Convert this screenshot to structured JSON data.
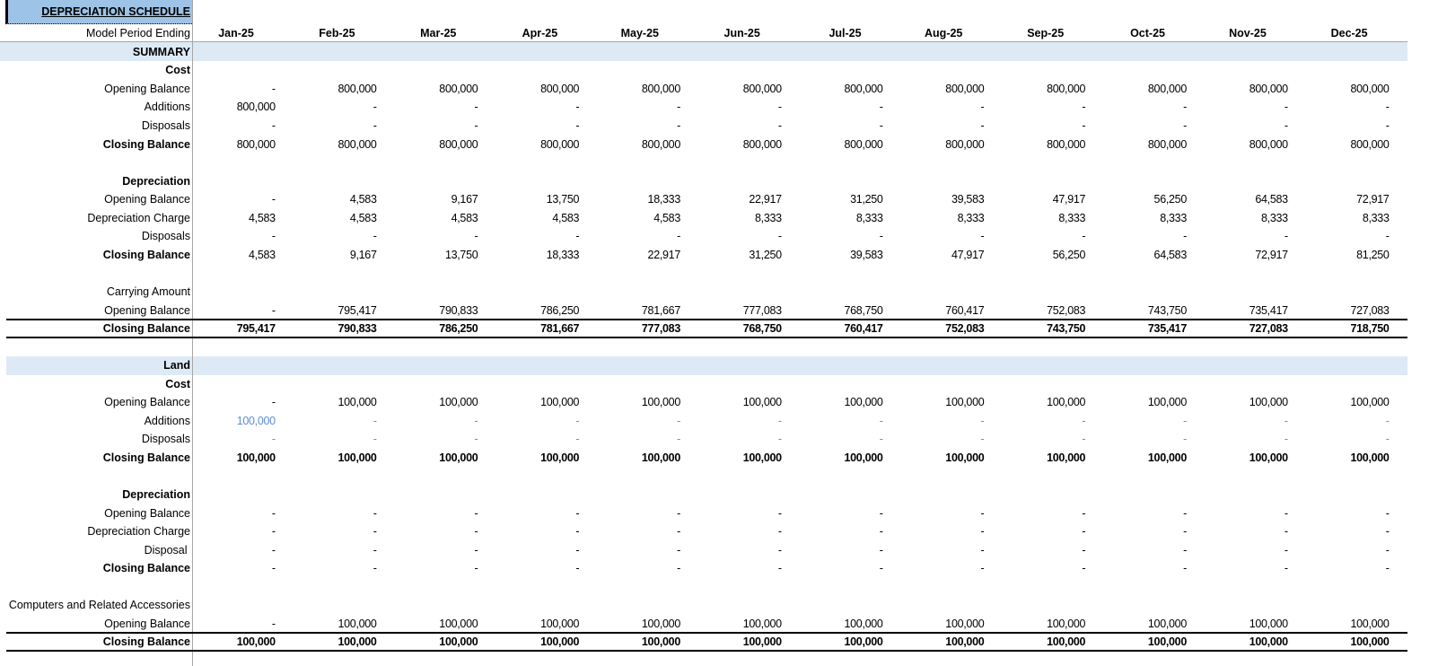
{
  "title": "DEPRECIATION SCHEDULE",
  "header": {
    "label": "Model Period Ending",
    "months": [
      "Jan-25",
      "Feb-25",
      "Mar-25",
      "Apr-25",
      "May-25",
      "Jun-25",
      "Jul-25",
      "Aug-25",
      "Sep-25",
      "Oct-25",
      "Nov-25",
      "Dec-25"
    ]
  },
  "colors": {
    "title_fill": "#9dc3e6",
    "section_band": "#ddeaf6",
    "input_blue": "#5b8fd4",
    "gridline": "#a6a6a6"
  },
  "summary": {
    "label": "SUMMARY",
    "cost": {
      "label": "Cost",
      "opening": {
        "label": "Opening Balance",
        "values": [
          "-",
          "800,000",
          "800,000",
          "800,000",
          "800,000",
          "800,000",
          "800,000",
          "800,000",
          "800,000",
          "800,000",
          "800,000",
          "800,000"
        ]
      },
      "additions": {
        "label": "Additions",
        "values": [
          "800,000",
          "-",
          "-",
          "-",
          "-",
          "-",
          "-",
          "-",
          "-",
          "-",
          "-",
          "-"
        ]
      },
      "disposals": {
        "label": "Disposals",
        "values": [
          "-",
          "-",
          "-",
          "-",
          "-",
          "-",
          "-",
          "-",
          "-",
          "-",
          "-",
          "-"
        ]
      },
      "closing": {
        "label": "Closing Balance",
        "values": [
          "800,000",
          "800,000",
          "800,000",
          "800,000",
          "800,000",
          "800,000",
          "800,000",
          "800,000",
          "800,000",
          "800,000",
          "800,000",
          "800,000"
        ]
      }
    },
    "depreciation": {
      "label": "Depreciation",
      "opening": {
        "label": "Opening Balance",
        "values": [
          "-",
          "4,583",
          "9,167",
          "13,750",
          "18,333",
          "22,917",
          "31,250",
          "39,583",
          "47,917",
          "56,250",
          "64,583",
          "72,917"
        ]
      },
      "charge": {
        "label": "Depreciation Charge",
        "values": [
          "4,583",
          "4,583",
          "4,583",
          "4,583",
          "4,583",
          "8,333",
          "8,333",
          "8,333",
          "8,333",
          "8,333",
          "8,333",
          "8,333"
        ]
      },
      "disposals": {
        "label": "Disposals",
        "values": [
          "-",
          "-",
          "-",
          "-",
          "-",
          "-",
          "-",
          "-",
          "-",
          "-",
          "-",
          "-"
        ]
      },
      "closing": {
        "label": "Closing Balance",
        "values": [
          "4,583",
          "9,167",
          "13,750",
          "18,333",
          "22,917",
          "31,250",
          "39,583",
          "47,917",
          "56,250",
          "64,583",
          "72,917",
          "81,250"
        ]
      }
    },
    "carrying": {
      "label": "Carrying Amount",
      "opening": {
        "label": "Opening Balance",
        "values": [
          "-",
          "795,417",
          "790,833",
          "786,250",
          "781,667",
          "777,083",
          "768,750",
          "760,417",
          "752,083",
          "743,750",
          "735,417",
          "727,083"
        ]
      },
      "closing": {
        "label": "Closing Balance",
        "values": [
          "795,417",
          "790,833",
          "786,250",
          "781,667",
          "777,083",
          "768,750",
          "760,417",
          "752,083",
          "743,750",
          "735,417",
          "727,083",
          "718,750"
        ]
      }
    }
  },
  "land": {
    "label": "Land",
    "cost": {
      "label": "Cost",
      "opening": {
        "label": "Opening Balance",
        "values": [
          "-",
          "100,000",
          "100,000",
          "100,000",
          "100,000",
          "100,000",
          "100,000",
          "100,000",
          "100,000",
          "100,000",
          "100,000",
          "100,000"
        ]
      },
      "additions": {
        "label": "Additions",
        "values": [
          "100,000",
          "-",
          "-",
          "-",
          "-",
          "-",
          "-",
          "-",
          "-",
          "-",
          "-",
          "-"
        ]
      },
      "disposals": {
        "label": "Disposals",
        "values": [
          "-",
          "-",
          "-",
          "-",
          "-",
          "-",
          "-",
          "-",
          "-",
          "-",
          "-",
          "-"
        ]
      },
      "closing": {
        "label": "Closing Balance",
        "values": [
          "100,000",
          "100,000",
          "100,000",
          "100,000",
          "100,000",
          "100,000",
          "100,000",
          "100,000",
          "100,000",
          "100,000",
          "100,000",
          "100,000"
        ]
      }
    },
    "depreciation": {
      "label": "Depreciation",
      "opening": {
        "label": "Opening Balance",
        "values": [
          "-",
          "-",
          "-",
          "-",
          "-",
          "-",
          "-",
          "-",
          "-",
          "-",
          "-",
          "-"
        ]
      },
      "charge": {
        "label": "Depreciation Charge",
        "values": [
          "-",
          "-",
          "-",
          "-",
          "-",
          "-",
          "-",
          "-",
          "-",
          "-",
          "-",
          "-"
        ]
      },
      "disposal": {
        "label": "Disposal ",
        "values": [
          "-",
          "-",
          "-",
          "-",
          "-",
          "-",
          "-",
          "-",
          "-",
          "-",
          "-",
          "-"
        ]
      },
      "closing": {
        "label": "Closing Balance",
        "values": [
          "-",
          "-",
          "-",
          "-",
          "-",
          "-",
          "-",
          "-",
          "-",
          "-",
          "-",
          "-"
        ]
      }
    },
    "carrying": {
      "label": "Computers and Related Accessories",
      "opening": {
        "label": "Opening Balance",
        "values": [
          "-",
          "100,000",
          "100,000",
          "100,000",
          "100,000",
          "100,000",
          "100,000",
          "100,000",
          "100,000",
          "100,000",
          "100,000",
          "100,000"
        ]
      },
      "closing": {
        "label": "Closing Balance",
        "values": [
          "100,000",
          "100,000",
          "100,000",
          "100,000",
          "100,000",
          "100,000",
          "100,000",
          "100,000",
          "100,000",
          "100,000",
          "100,000",
          "100,000"
        ]
      }
    }
  }
}
